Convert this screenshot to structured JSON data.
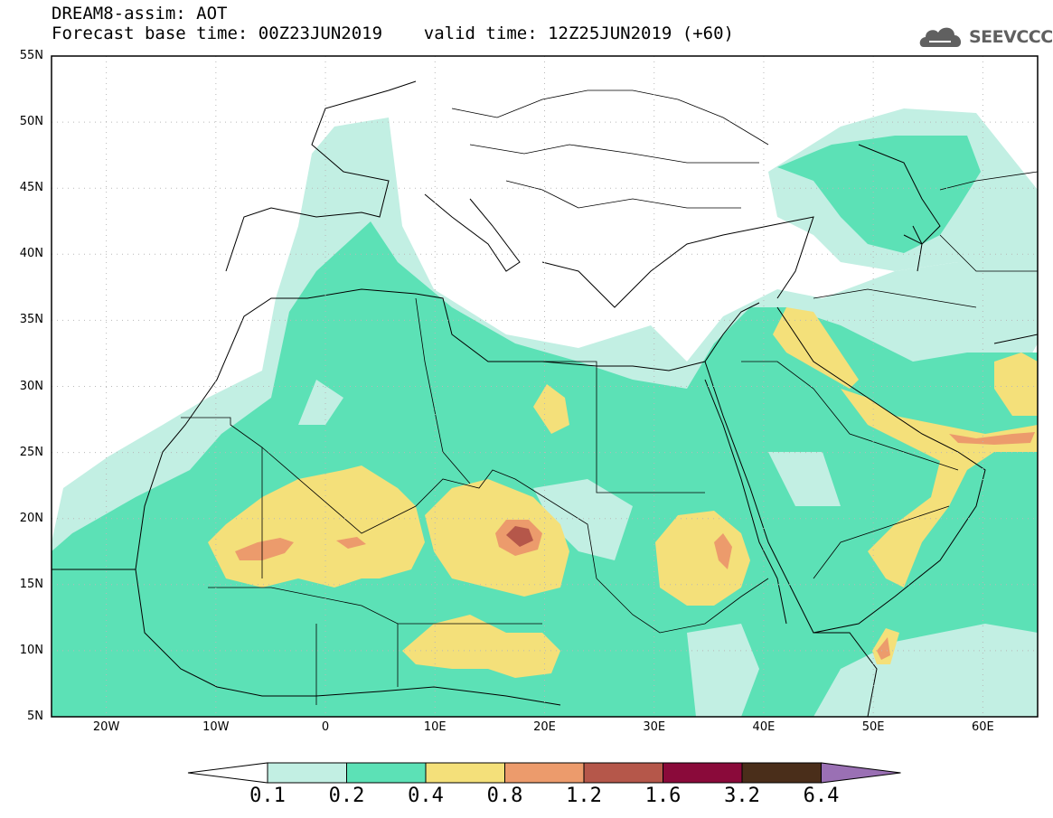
{
  "title": {
    "line1": "DREAM8-assim: AOT",
    "line2": "Forecast base time: 00Z23JUN2019    valid time: 12Z25JUN2019 (+60)"
  },
  "logo": {
    "text": "SEEVCCC",
    "icon": "cloud-logo-icon"
  },
  "map": {
    "lon_range": [
      -25,
      65
    ],
    "lat_range": [
      5,
      55
    ],
    "gridlines": "dotted",
    "y_ticks": [
      "55N",
      "50N",
      "45N",
      "40N",
      "35N",
      "30N",
      "25N",
      "20N",
      "15N",
      "10N",
      "5N"
    ],
    "x_ticks": [
      "20W",
      "10W",
      "0",
      "10E",
      "20E",
      "30E",
      "40E",
      "50E",
      "60E"
    ]
  },
  "colorbar": {
    "labels": [
      "0.1",
      "0.2",
      "0.4",
      "0.8",
      "1.2",
      "1.6",
      "3.2",
      "6.4"
    ],
    "colors": [
      "#ffffff",
      "#c2efe3",
      "#5ce1b6",
      "#f4e07a",
      "#ec9b6c",
      "#b5574a",
      "#8a0a3a",
      "#4a2e1a",
      "#9a70b4"
    ]
  },
  "palette": {
    "c01": "#c2efe3",
    "c02": "#5ce1b6",
    "c04": "#f4e07a",
    "c08": "#ec9b6c",
    "c12": "#b5574a"
  }
}
